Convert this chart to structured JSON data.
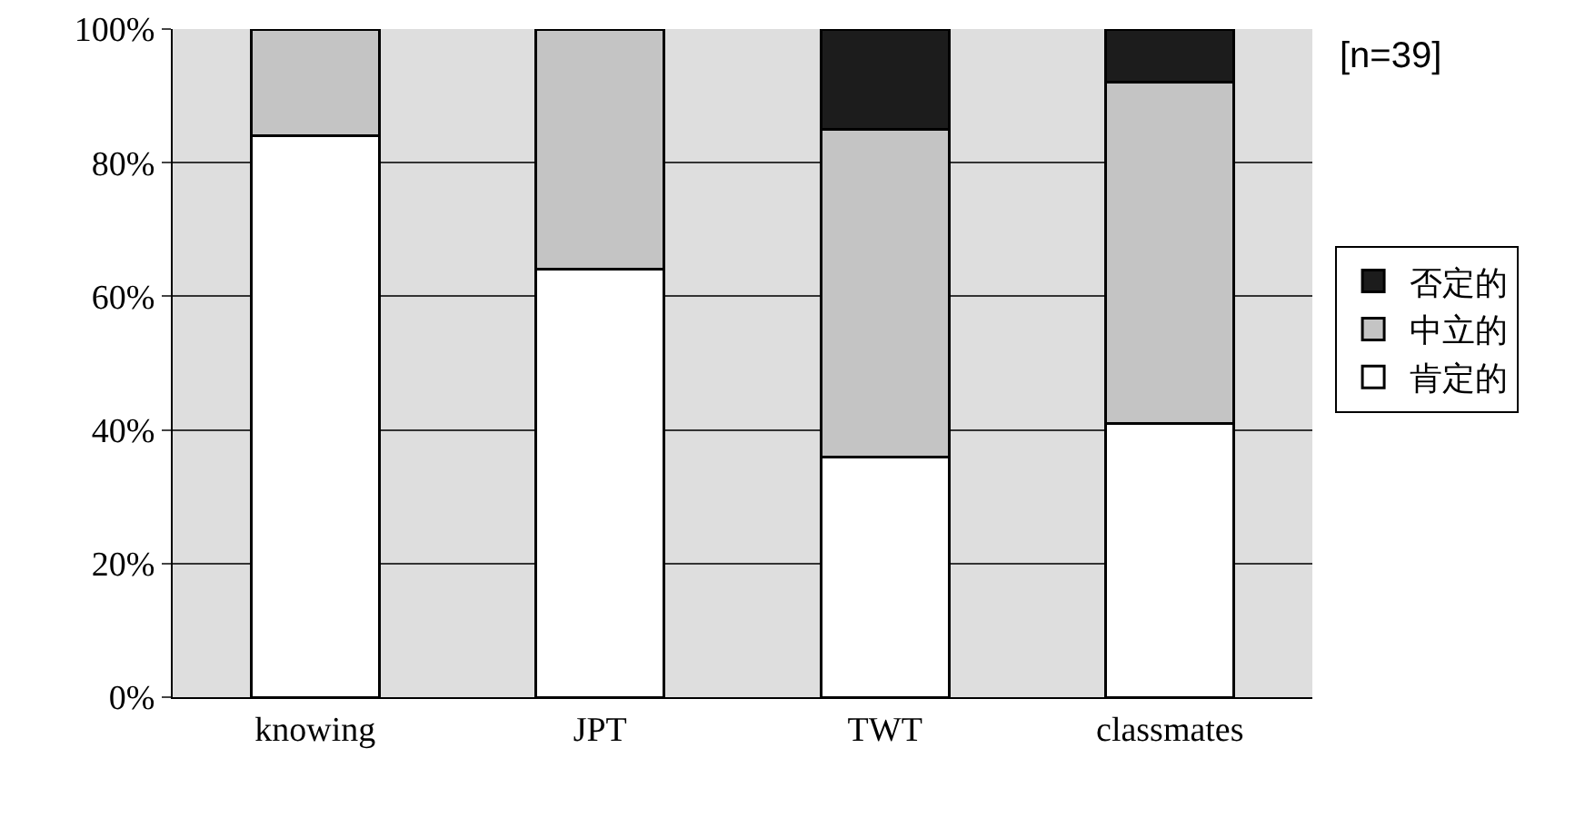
{
  "chart_data": {
    "type": "bar",
    "stacked": true,
    "categories": [
      "knowing",
      "JPT",
      "TWT",
      "classmates"
    ],
    "series": [
      {
        "name": "肯定的",
        "color": "#ffffff",
        "values": [
          84,
          64,
          36,
          41
        ]
      },
      {
        "name": "中立的",
        "color": "#c4c4c4",
        "values": [
          16,
          36,
          49,
          51
        ]
      },
      {
        "name": "否定的",
        "color": "#1c1c1c",
        "values": [
          null,
          null,
          15,
          8
        ]
      }
    ],
    "ylim": [
      0,
      100
    ],
    "yticks": [
      {
        "value": 0,
        "label": "0%"
      },
      {
        "value": 20,
        "label": "20%"
      },
      {
        "value": 40,
        "label": "40%"
      },
      {
        "value": 60,
        "label": "60%"
      },
      {
        "value": 80,
        "label": "80%"
      },
      {
        "value": 100,
        "label": "100%"
      }
    ],
    "grid": "y",
    "legend": "right",
    "annotations": [
      "[n=39]"
    ]
  }
}
